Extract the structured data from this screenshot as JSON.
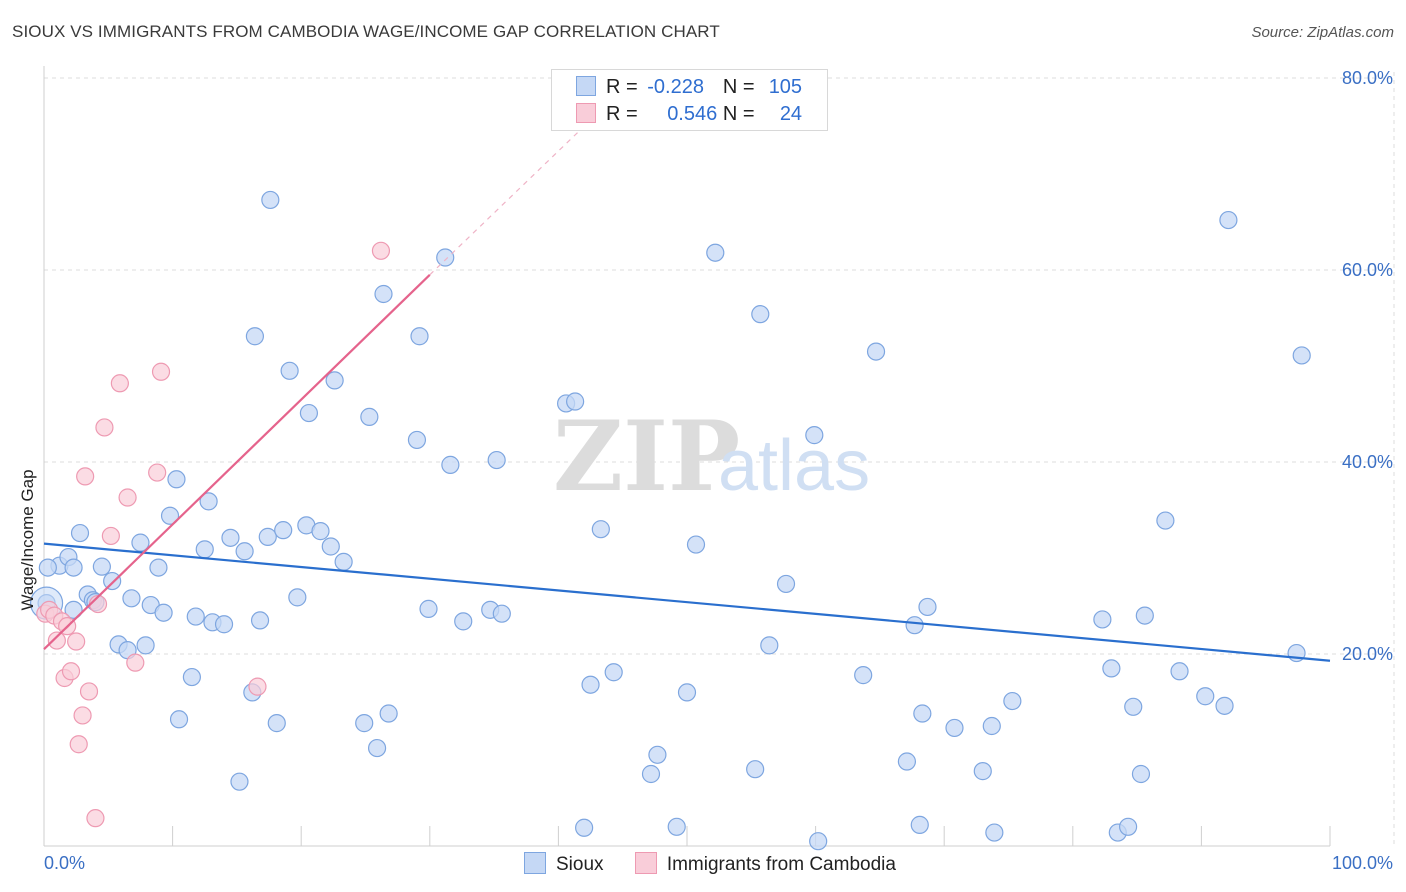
{
  "title": "SIOUX VS IMMIGRANTS FROM CAMBODIA WAGE/INCOME GAP CORRELATION CHART",
  "source": "Source: ZipAtlas.com",
  "watermark": {
    "zip": "ZIP",
    "atlas": "atlas"
  },
  "legend": {
    "r_label": "R =",
    "n_label": "N =",
    "rows": [
      {
        "name": "Sioux",
        "r": "-0.228",
        "n": "105"
      },
      {
        "name": "Immigrants from Cambodia",
        "r": "0.546",
        "n": "24"
      }
    ]
  },
  "colors": {
    "sioux_fill": "#c5d8f5",
    "sioux_stroke": "#7ea6e0",
    "sioux_line": "#2a6fce",
    "cambodia_fill": "#f9cdd9",
    "cambodia_stroke": "#ee9ab2",
    "cambodia_line": "#e5638c",
    "axis_text": "#3a6fc4",
    "grid": "#dddddd"
  },
  "chart_data": {
    "type": "scatter",
    "title": "SIOUX VS IMMIGRANTS FROM CAMBODIA WAGE/INCOME GAP CORRELATION CHART",
    "xlabel": "",
    "ylabel": "Wage/Income Gap",
    "xlim": [
      0,
      100
    ],
    "ylim": [
      0,
      80
    ],
    "x_tick_labels": [
      "0.0%",
      "100.0%"
    ],
    "y_ticks": [
      20,
      40,
      60,
      80
    ],
    "y_tick_labels": [
      "20.0%",
      "40.0%",
      "60.0%",
      "80.0%"
    ],
    "grid": true,
    "series": [
      {
        "name": "Sioux",
        "r": -0.228,
        "n": 105,
        "trend": {
          "x": [
            0,
            100
          ],
          "y": [
            31.5,
            19.3
          ]
        },
        "points": [
          [
            0.2,
            25.3
          ],
          [
            1.2,
            29.2
          ],
          [
            1.9,
            30.1
          ],
          [
            2.3,
            29.0
          ],
          [
            2.3,
            24.6
          ],
          [
            2.8,
            32.6
          ],
          [
            3.4,
            26.2
          ],
          [
            3.8,
            25.6
          ],
          [
            4.0,
            25.4
          ],
          [
            4.5,
            29.1
          ],
          [
            5.3,
            27.6
          ],
          [
            5.8,
            21.0
          ],
          [
            6.5,
            20.4
          ],
          [
            6.8,
            25.8
          ],
          [
            7.5,
            31.6
          ],
          [
            7.9,
            20.9
          ],
          [
            8.3,
            25.1
          ],
          [
            8.9,
            29.0
          ],
          [
            9.3,
            24.3
          ],
          [
            9.8,
            34.4
          ],
          [
            10.3,
            38.2
          ],
          [
            10.5,
            13.2
          ],
          [
            11.5,
            17.6
          ],
          [
            11.8,
            23.9
          ],
          [
            12.5,
            30.9
          ],
          [
            12.8,
            35.9
          ],
          [
            13.1,
            23.3
          ],
          [
            14.0,
            23.1
          ],
          [
            14.5,
            32.1
          ],
          [
            15.2,
            6.7
          ],
          [
            15.6,
            30.7
          ],
          [
            16.2,
            16.0
          ],
          [
            16.4,
            53.1
          ],
          [
            16.8,
            23.5
          ],
          [
            17.4,
            32.2
          ],
          [
            17.6,
            67.3
          ],
          [
            18.1,
            12.8
          ],
          [
            18.6,
            32.9
          ],
          [
            19.1,
            49.5
          ],
          [
            19.7,
            25.9
          ],
          [
            20.4,
            33.4
          ],
          [
            20.6,
            45.1
          ],
          [
            21.5,
            32.8
          ],
          [
            22.3,
            31.2
          ],
          [
            22.6,
            48.5
          ],
          [
            23.3,
            29.6
          ],
          [
            24.9,
            12.8
          ],
          [
            25.3,
            44.7
          ],
          [
            25.9,
            10.2
          ],
          [
            26.4,
            57.5
          ],
          [
            26.8,
            13.8
          ],
          [
            29.0,
            42.3
          ],
          [
            29.2,
            53.1
          ],
          [
            29.9,
            24.7
          ],
          [
            31.2,
            61.3
          ],
          [
            31.6,
            39.7
          ],
          [
            32.6,
            23.4
          ],
          [
            34.7,
            24.6
          ],
          [
            35.2,
            40.2
          ],
          [
            35.6,
            24.2
          ],
          [
            40.6,
            46.1
          ],
          [
            41.3,
            46.3
          ],
          [
            42.0,
            1.9
          ],
          [
            42.5,
            16.8
          ],
          [
            43.3,
            33.0
          ],
          [
            44.3,
            18.1
          ],
          [
            47.2,
            7.5
          ],
          [
            47.7,
            9.5
          ],
          [
            49.2,
            2.0
          ],
          [
            50.0,
            16.0
          ],
          [
            50.7,
            31.4
          ],
          [
            52.2,
            61.8
          ],
          [
            55.3,
            8.0
          ],
          [
            55.7,
            55.4
          ],
          [
            56.4,
            20.9
          ],
          [
            57.7,
            27.3
          ],
          [
            59.9,
            42.8
          ],
          [
            60.2,
            0.5
          ],
          [
            63.7,
            17.8
          ],
          [
            64.7,
            51.5
          ],
          [
            67.1,
            8.8
          ],
          [
            67.7,
            23.0
          ],
          [
            68.1,
            2.2
          ],
          [
            68.3,
            13.8
          ],
          [
            68.7,
            24.9
          ],
          [
            70.8,
            12.3
          ],
          [
            73.0,
            7.8
          ],
          [
            73.7,
            12.5
          ],
          [
            73.9,
            1.4
          ],
          [
            75.3,
            15.1
          ],
          [
            82.3,
            23.6
          ],
          [
            83.0,
            18.5
          ],
          [
            83.5,
            1.4
          ],
          [
            84.3,
            2.0
          ],
          [
            84.7,
            14.5
          ],
          [
            85.3,
            7.5
          ],
          [
            85.6,
            24.0
          ],
          [
            87.2,
            33.9
          ],
          [
            88.3,
            18.2
          ],
          [
            90.3,
            15.6
          ],
          [
            91.8,
            14.6
          ],
          [
            92.1,
            65.2
          ],
          [
            97.4,
            20.1
          ],
          [
            97.8,
            51.1
          ],
          [
            0.3,
            29.0
          ]
        ]
      },
      {
        "name": "Immigrants from Cambodia",
        "r": 0.546,
        "n": 24,
        "trend": {
          "x": [
            0,
            30
          ],
          "y": [
            20.5,
            59.5
          ]
        },
        "trend_ext": {
          "x": [
            30,
            42.8
          ],
          "y": [
            59.5,
            76.0
          ]
        },
        "points": [
          [
            0.1,
            24.2
          ],
          [
            0.4,
            24.6
          ],
          [
            0.8,
            24.0
          ],
          [
            1.0,
            21.4
          ],
          [
            1.4,
            23.4
          ],
          [
            1.6,
            17.5
          ],
          [
            1.8,
            22.9
          ],
          [
            2.1,
            18.2
          ],
          [
            2.5,
            21.3
          ],
          [
            2.7,
            10.6
          ],
          [
            3.0,
            13.6
          ],
          [
            3.2,
            38.5
          ],
          [
            3.5,
            16.1
          ],
          [
            4.0,
            2.9
          ],
          [
            4.2,
            25.2
          ],
          [
            4.7,
            43.6
          ],
          [
            5.2,
            32.3
          ],
          [
            5.9,
            48.2
          ],
          [
            6.5,
            36.3
          ],
          [
            7.1,
            19.1
          ],
          [
            8.8,
            38.9
          ],
          [
            9.1,
            49.4
          ],
          [
            16.6,
            16.6
          ],
          [
            26.2,
            62.0
          ]
        ]
      }
    ]
  }
}
